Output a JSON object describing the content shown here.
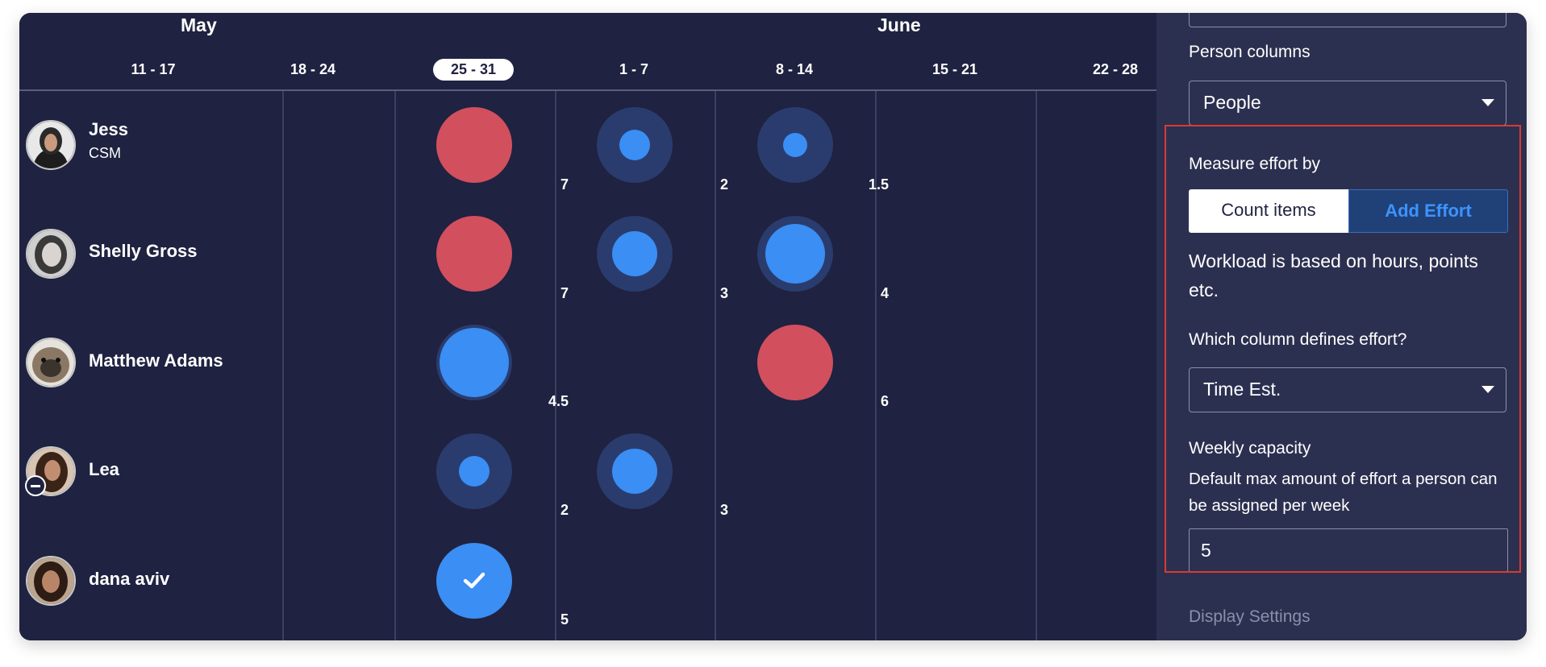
{
  "timeline": {
    "months": [
      "May",
      "June"
    ],
    "weeks": [
      "11 - 17",
      "18 - 24",
      "25 - 31",
      "1 - 7",
      "8 - 14",
      "15 - 21",
      "22 - 28"
    ],
    "current_week": "25 - 31"
  },
  "people": [
    {
      "name": "Jess",
      "role": "CSM",
      "status": "",
      "efforts": [
        {
          "week": "25 - 31",
          "value": "7",
          "state": "over capacity"
        },
        {
          "week": "1 - 7",
          "value": "2",
          "state": "partial"
        },
        {
          "week": "8 - 14",
          "value": "1.5",
          "state": "partial"
        }
      ]
    },
    {
      "name": "Shelly Gross",
      "role": "",
      "status": "",
      "efforts": [
        {
          "week": "25 - 31",
          "value": "7",
          "state": "over capacity"
        },
        {
          "week": "1 - 7",
          "value": "3",
          "state": "partial"
        },
        {
          "week": "8 - 14",
          "value": "4",
          "state": "partial"
        }
      ]
    },
    {
      "name": "Matthew Adams",
      "role": "",
      "status": "",
      "efforts": [
        {
          "week": "25 - 31",
          "value": "4.5",
          "state": "partial"
        },
        {
          "week": "8 - 14",
          "value": "6",
          "state": "over capacity"
        }
      ]
    },
    {
      "name": "Lea",
      "role": "",
      "status": "minus-badge",
      "efforts": [
        {
          "week": "25 - 31",
          "value": "2",
          "state": "partial"
        },
        {
          "week": "1 - 7",
          "value": "3",
          "state": "partial"
        }
      ]
    },
    {
      "name": "dana aviv",
      "role": "",
      "status": "",
      "efforts": [
        {
          "week": "25 - 31",
          "value": "5",
          "state": "full capacity"
        }
      ]
    }
  ],
  "settings": {
    "person_columns_label": "Person columns",
    "person_columns_value": "People",
    "measure_label": "Measure effort by",
    "count_items_label": "Count items",
    "add_effort_label": "Add Effort",
    "workload_desc": "Workload is based on hours, points etc.",
    "effort_column_label": "Which column defines effort?",
    "effort_column_value": "Time Est.",
    "capacity_label": "Weekly capacity",
    "capacity_desc": "Default max amount of effort a person can be assigned per week",
    "capacity_value": "5",
    "display_settings_label": "Display Settings"
  },
  "colors": {
    "background": "#1f2240",
    "panel": "#2c3050",
    "over_capacity": "#d24f5e",
    "load": "#3a8ef4",
    "track": "#2a3c6e",
    "accent": "#3d93ff",
    "highlight": "#d93a2f"
  }
}
